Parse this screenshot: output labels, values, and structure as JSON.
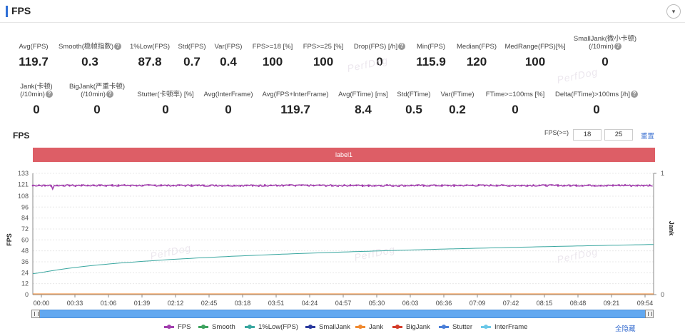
{
  "header": {
    "title": "FPS",
    "collapse_icon": "▾"
  },
  "stats_row1": [
    {
      "label": "Avg(FPS)",
      "value": "119.7",
      "help": false
    },
    {
      "label": "Smooth(稳帧指数)",
      "value": "0.3",
      "help": true
    },
    {
      "label": "1%Low(FPS)",
      "value": "87.8",
      "help": false
    },
    {
      "label": "Std(FPS)",
      "value": "0.7",
      "help": false
    },
    {
      "label": "Var(FPS)",
      "value": "0.4",
      "help": false
    },
    {
      "label": "FPS>=18 [%]",
      "value": "100",
      "help": false
    },
    {
      "label": "FPS>=25 [%]",
      "value": "100",
      "help": false
    },
    {
      "label": "Drop(FPS) [/h]",
      "value": "0",
      "help": true
    },
    {
      "label": "Min(FPS)",
      "value": "115.9",
      "help": false
    },
    {
      "label": "Median(FPS)",
      "value": "120",
      "help": false
    },
    {
      "label": "MedRange(FPS)[%]",
      "value": "100",
      "help": false
    },
    {
      "label": "SmallJank(微小卡顿)",
      "label2": "(/10min)",
      "value": "0",
      "help": true
    }
  ],
  "stats_row2": [
    {
      "label": "Jank(卡顿)",
      "label2": "(/10min)",
      "value": "0",
      "help": true
    },
    {
      "label": "BigJank(严重卡顿)",
      "label2": "(/10min)",
      "value": "0",
      "help": true
    },
    {
      "label": "Stutter(卡顿率) [%]",
      "value": "0",
      "help": false
    },
    {
      "label": "Avg(InterFrame)",
      "value": "0",
      "help": false
    },
    {
      "label": "Avg(FPS+InterFrame)",
      "value": "119.7",
      "help": false
    },
    {
      "label": "Avg(FTime) [ms]",
      "value": "8.4",
      "help": false
    },
    {
      "label": "Std(FTime)",
      "value": "0.5",
      "help": false
    },
    {
      "label": "Var(FTime)",
      "value": "0.2",
      "help": false
    },
    {
      "label": "FTime>=100ms [%]",
      "value": "0",
      "help": false
    },
    {
      "label": "Delta(FTime)>100ms [/h]",
      "value": "0",
      "help": true
    }
  ],
  "watermark_text": "PerfDog",
  "chart_section": {
    "title": "FPS",
    "threshold_label": "FPS(>=)",
    "threshold_1": "18",
    "threshold_2": "25",
    "reset_label": "重置",
    "band_label": "label1",
    "hide_all_label": "全隐藏",
    "help_glyph": "?"
  },
  "chart_data": {
    "type": "line",
    "ylabel": "FPS",
    "y2label": "Jank",
    "ylim": [
      0,
      133
    ],
    "yticks": [
      0,
      12,
      24,
      36,
      48,
      60,
      72,
      84,
      96,
      108,
      121,
      133
    ],
    "y2ticks": [
      "0",
      "1"
    ],
    "x_ticks": [
      "00:00",
      "00:33",
      "01:06",
      "01:39",
      "02:12",
      "02:45",
      "03:18",
      "03:51",
      "04:24",
      "04:57",
      "05:30",
      "06:03",
      "06:36",
      "07:09",
      "07:42",
      "08:15",
      "08:48",
      "09:21",
      "09:54"
    ],
    "duration_s": 610,
    "series": [
      {
        "name": "FPS",
        "color": "#a23fae",
        "level": 119.7,
        "noise": 0.8,
        "min_point": {
          "t": 20,
          "v": 115.9
        }
      },
      {
        "name": "Smooth",
        "color": "#3ea35f"
      },
      {
        "name": "1%Low(FPS)",
        "color": "#3aa7a0",
        "start": 23,
        "end": 55,
        "curve": "log"
      },
      {
        "name": "SmallJank",
        "color": "#2b3a9e"
      },
      {
        "name": "Jank",
        "color": "#f08a30",
        "level": 0
      },
      {
        "name": "BigJank",
        "color": "#d43c2a"
      },
      {
        "name": "Stutter",
        "color": "#4a7fd8"
      },
      {
        "name": "InterFrame",
        "color": "#6cc8e8"
      }
    ]
  }
}
